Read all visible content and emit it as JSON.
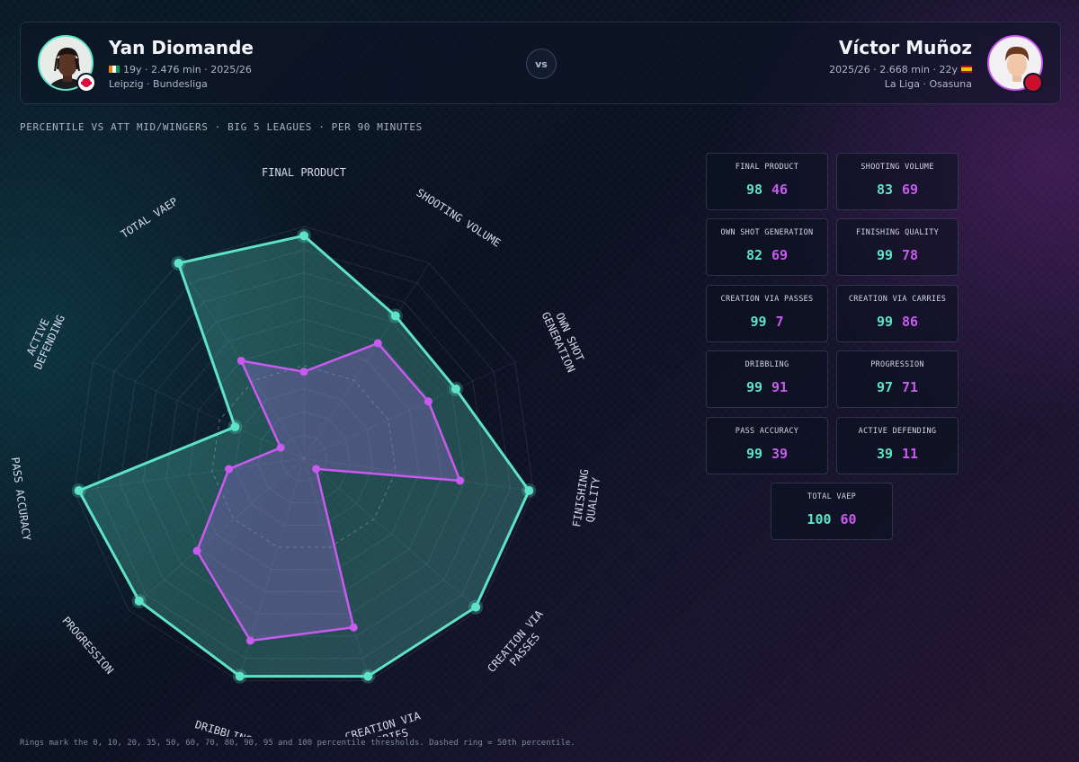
{
  "colors": {
    "player_a": "#5ee3c6",
    "player_b": "#c95af0"
  },
  "header": {
    "vs_label": "vs",
    "player_a": {
      "name": "Yan Diomande",
      "meta_line1": "19y · 2.476 min · 2025/26",
      "meta_line2": "Leipzig · Bundesliga",
      "flag_icon": "ivory-coast-flag-icon",
      "club_badge_icon": "rb-leipzig-crest-icon"
    },
    "player_b": {
      "name": "Víctor Muñoz",
      "meta_line1": "2025/26 · 2.668 min · 22y",
      "meta_line2": "La Liga · Osasuna",
      "flag_icon": "spain-flag-icon",
      "club_badge_icon": "osasuna-crest-icon"
    }
  },
  "subtitle": "PERCENTILE VS ATT MID/WINGERS · BIG 5 LEAGUES · PER 90 MINUTES",
  "chart_data": {
    "type": "radar",
    "scale": [
      0,
      100
    ],
    "rings": [
      0,
      10,
      20,
      35,
      50,
      60,
      70,
      80,
      90,
      95,
      100
    ],
    "dashed_ring": 50,
    "categories": [
      "FINAL PRODUCT",
      "SHOOTING VOLUME",
      "OWN SHOT GENERATION",
      "FINISHING QUALITY",
      "CREATION VIA PASSES",
      "CREATION VIA CARRIES",
      "DRIBBLING",
      "PROGRESSION",
      "PASS ACCURACY",
      "ACTIVE DEFENDING",
      "TOTAL VAEP"
    ],
    "axis_labels": [
      [
        "FINAL PRODUCT"
      ],
      [
        "SHOOTING VOLUME"
      ],
      [
        "OWN SHOT",
        "GENERATION"
      ],
      [
        "FINISHING",
        "QUALITY"
      ],
      [
        "CREATION VIA",
        "PASSES"
      ],
      [
        "CREATION VIA",
        "CARRIES"
      ],
      [
        "DRIBBLING"
      ],
      [
        "PROGRESSION"
      ],
      [
        "PASS ACCURACY"
      ],
      [
        "ACTIVE",
        "DEFENDING"
      ],
      [
        "TOTAL VAEP"
      ]
    ],
    "series": [
      {
        "name": "Yan Diomande",
        "values": [
          98,
          83,
          82,
          99,
          99,
          99,
          99,
          97,
          99,
          39,
          100
        ]
      },
      {
        "name": "Víctor Muñoz",
        "values": [
          46,
          69,
          69,
          78,
          7,
          86,
          91,
          71,
          39,
          11,
          60
        ]
      }
    ]
  },
  "stat_cards": [
    {
      "label": "FINAL PRODUCT",
      "a": "98",
      "b": "46"
    },
    {
      "label": "SHOOTING VOLUME",
      "a": "83",
      "b": "69"
    },
    {
      "label": "OWN SHOT GENERATION",
      "a": "82",
      "b": "69"
    },
    {
      "label": "FINISHING QUALITY",
      "a": "99",
      "b": "78"
    },
    {
      "label": "CREATION VIA PASSES",
      "a": "99",
      "b": "7"
    },
    {
      "label": "CREATION VIA CARRIES",
      "a": "99",
      "b": "86"
    },
    {
      "label": "DRIBBLING",
      "a": "99",
      "b": "91"
    },
    {
      "label": "PROGRESSION",
      "a": "97",
      "b": "71"
    },
    {
      "label": "PASS ACCURACY",
      "a": "99",
      "b": "39"
    },
    {
      "label": "ACTIVE DEFENDING",
      "a": "39",
      "b": "11"
    },
    {
      "label": "TOTAL VAEP",
      "a": "100",
      "b": "60"
    }
  ],
  "footer": "Rings mark the 0, 10, 20, 35, 50, 60, 70, 80, 90, 95 and 100 percentile thresholds. Dashed ring = 50th percentile."
}
